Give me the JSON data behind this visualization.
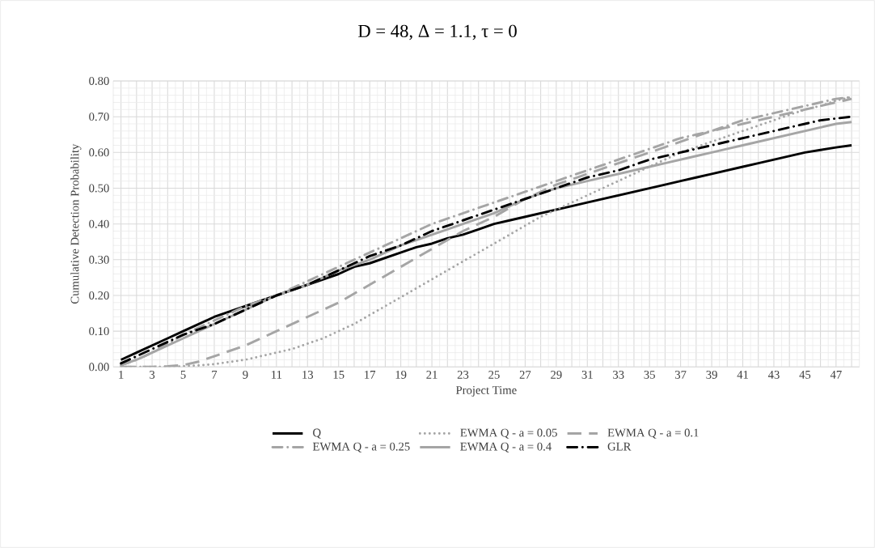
{
  "chart_data": {
    "type": "line",
    "title": "D = 48, Δ = 1.1, τ = 0",
    "xlabel": "Project Time",
    "ylabel": "Cumulative Detection Probability",
    "categories": [
      "1",
      null,
      "3",
      null,
      "5",
      null,
      "7",
      null,
      "9",
      null,
      "11",
      null,
      "13",
      null,
      "15",
      null,
      "17",
      null,
      "19",
      null,
      "21",
      null,
      "23",
      null,
      "25",
      null,
      "27",
      null,
      "29",
      null,
      "31",
      null,
      "33",
      null,
      "35",
      null,
      "37",
      null,
      "39",
      null,
      "41",
      null,
      "43",
      null,
      "45",
      null,
      "47",
      null
    ],
    "ylim": [
      0,
      0.8
    ],
    "yticks": [
      {
        "value": 0,
        "label": "0.00"
      },
      {
        "value": 0.1,
        "label": "0.10"
      },
      {
        "value": 0.2,
        "label": "0.20"
      },
      {
        "value": 0.3,
        "label": "0.30"
      },
      {
        "value": 0.4,
        "label": "0.40"
      },
      {
        "value": 0.5,
        "label": "0.50"
      },
      {
        "value": 0.6,
        "label": "0.60"
      },
      {
        "value": 0.7,
        "label": "0.70"
      },
      {
        "value": 0.8,
        "label": "0.80"
      }
    ],
    "grid": true,
    "legend": "bottom",
    "marker": "none",
    "series": [
      {
        "name": "Q",
        "color": "#000000",
        "line_style": "solid",
        "values": [
          0.02,
          0.04,
          0.06,
          0.08,
          0.1,
          0.12,
          0.14,
          0.155,
          0.17,
          0.185,
          0.2,
          0.215,
          0.23,
          0.245,
          0.26,
          0.28,
          0.29,
          0.305,
          0.32,
          0.335,
          0.345,
          0.36,
          0.37,
          0.385,
          0.4,
          0.41,
          0.42,
          0.43,
          0.44,
          0.45,
          0.46,
          0.47,
          0.48,
          0.49,
          0.5,
          0.51,
          0.52,
          0.53,
          0.54,
          0.55,
          0.56,
          0.57,
          0.58,
          0.59,
          0.6,
          0.607,
          0.614,
          0.62
        ]
      },
      {
        "name": "EWMA Q - a = 0.05",
        "color": "#a5a5a5",
        "line_style": "dotted",
        "values": [
          0,
          0,
          0,
          0,
          0.002,
          0.004,
          0.008,
          0.014,
          0.02,
          0.03,
          0.04,
          0.05,
          0.065,
          0.08,
          0.1,
          0.12,
          0.145,
          0.17,
          0.195,
          0.22,
          0.245,
          0.27,
          0.295,
          0.32,
          0.345,
          0.37,
          0.395,
          0.42,
          0.44,
          0.46,
          0.48,
          0.5,
          0.52,
          0.54,
          0.56,
          0.58,
          0.6,
          0.615,
          0.63,
          0.645,
          0.66,
          0.675,
          0.69,
          0.705,
          0.72,
          0.73,
          0.745,
          0.755
        ]
      },
      {
        "name": "EWMA Q - a = 0.1",
        "color": "#a5a5a5",
        "line_style": "dashed",
        "values": [
          0,
          0,
          0,
          0.002,
          0.005,
          0.015,
          0.03,
          0.045,
          0.06,
          0.08,
          0.1,
          0.12,
          0.14,
          0.16,
          0.18,
          0.205,
          0.23,
          0.255,
          0.28,
          0.305,
          0.33,
          0.355,
          0.38,
          0.4,
          0.42,
          0.445,
          0.47,
          0.49,
          0.51,
          0.525,
          0.54,
          0.555,
          0.57,
          0.585,
          0.6,
          0.615,
          0.63,
          0.645,
          0.66,
          0.67,
          0.68,
          0.69,
          0.7,
          0.71,
          0.72,
          0.73,
          0.74,
          0.75
        ]
      },
      {
        "name": "EWMA Q - a = 0.25",
        "color": "#a5a5a5",
        "line_style": "dashdot",
        "values": [
          0.005,
          0.02,
          0.04,
          0.065,
          0.09,
          0.11,
          0.13,
          0.15,
          0.17,
          0.185,
          0.2,
          0.22,
          0.24,
          0.26,
          0.28,
          0.3,
          0.32,
          0.34,
          0.36,
          0.38,
          0.4,
          0.415,
          0.43,
          0.445,
          0.46,
          0.475,
          0.49,
          0.505,
          0.52,
          0.535,
          0.55,
          0.565,
          0.58,
          0.595,
          0.61,
          0.625,
          0.64,
          0.65,
          0.66,
          0.675,
          0.69,
          0.7,
          0.71,
          0.72,
          0.73,
          0.74,
          0.75,
          0.755
        ]
      },
      {
        "name": "EWMA Q - a = 0.4",
        "color": "#a5a5a5",
        "line_style": "solid",
        "values": [
          0.005,
          0.02,
          0.04,
          0.06,
          0.08,
          0.1,
          0.12,
          0.14,
          0.16,
          0.18,
          0.2,
          0.215,
          0.23,
          0.25,
          0.27,
          0.285,
          0.3,
          0.32,
          0.34,
          0.355,
          0.37,
          0.385,
          0.4,
          0.415,
          0.43,
          0.45,
          0.47,
          0.485,
          0.5,
          0.51,
          0.52,
          0.53,
          0.54,
          0.55,
          0.56,
          0.57,
          0.58,
          0.59,
          0.6,
          0.61,
          0.62,
          0.63,
          0.64,
          0.65,
          0.66,
          0.67,
          0.68,
          0.685
        ]
      },
      {
        "name": "GLR",
        "color": "#000000",
        "line_style": "dashdot",
        "values": [
          0.01,
          0.03,
          0.05,
          0.07,
          0.09,
          0.105,
          0.12,
          0.14,
          0.16,
          0.18,
          0.2,
          0.215,
          0.23,
          0.25,
          0.27,
          0.29,
          0.31,
          0.325,
          0.34,
          0.36,
          0.38,
          0.395,
          0.41,
          0.425,
          0.44,
          0.455,
          0.47,
          0.485,
          0.5,
          0.515,
          0.53,
          0.54,
          0.55,
          0.565,
          0.58,
          0.59,
          0.6,
          0.61,
          0.62,
          0.63,
          0.64,
          0.65,
          0.66,
          0.67,
          0.68,
          0.69,
          0.695,
          0.7
        ]
      }
    ]
  }
}
